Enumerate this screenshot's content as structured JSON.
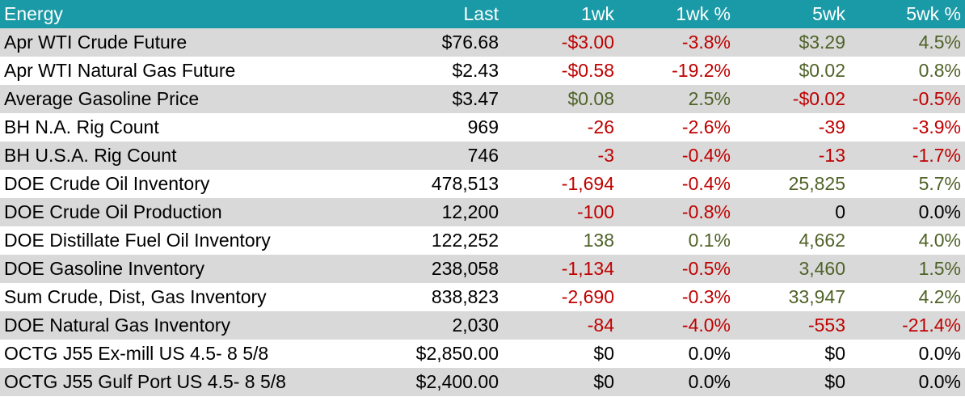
{
  "header": {
    "name": "Energy",
    "last": "Last",
    "wk1": "1wk",
    "wk1_pct": "1wk %",
    "wk5": "5wk",
    "wk5_pct": "5wk %"
  },
  "colors": {
    "header_bg": "#1a9aa6",
    "negative": "#c00000",
    "positive": "#4f6228",
    "stripe": "#d9d9d9"
  },
  "rows": [
    {
      "name": "Apr WTI Crude Future",
      "last": "$76.68",
      "wk1": "-$3.00",
      "wk1_pct": "-3.8%",
      "wk5": "$3.29",
      "wk5_pct": "4.5%"
    },
    {
      "name": "Apr WTI Natural Gas Future",
      "last": "$2.43",
      "wk1": "-$0.58",
      "wk1_pct": "-19.2%",
      "wk5": "$0.02",
      "wk5_pct": "0.8%"
    },
    {
      "name": "Average Gasoline Price",
      "last": "$3.47",
      "wk1": "$0.08",
      "wk1_pct": "2.5%",
      "wk5": "-$0.02",
      "wk5_pct": "-0.5%"
    },
    {
      "name": "BH N.A. Rig Count",
      "last": "969",
      "wk1": "-26",
      "wk1_pct": "-2.6%",
      "wk5": "-39",
      "wk5_pct": "-3.9%"
    },
    {
      "name": "BH U.S.A. Rig Count",
      "last": "746",
      "wk1": "-3",
      "wk1_pct": "-0.4%",
      "wk5": "-13",
      "wk5_pct": "-1.7%"
    },
    {
      "name": "DOE Crude Oil Inventory",
      "last": "478,513",
      "wk1": "-1,694",
      "wk1_pct": "-0.4%",
      "wk5": "25,825",
      "wk5_pct": "5.7%"
    },
    {
      "name": "DOE Crude Oil Production",
      "last": "12,200",
      "wk1": "-100",
      "wk1_pct": "-0.8%",
      "wk5": "0",
      "wk5_pct": "0.0%"
    },
    {
      "name": "DOE Distillate Fuel Oil Inventory",
      "last": "122,252",
      "wk1": "138",
      "wk1_pct": "0.1%",
      "wk5": "4,662",
      "wk5_pct": "4.0%"
    },
    {
      "name": "DOE Gasoline Inventory",
      "last": "238,058",
      "wk1": "-1,134",
      "wk1_pct": "-0.5%",
      "wk5": "3,460",
      "wk5_pct": "1.5%"
    },
    {
      "name": "Sum Crude, Dist, Gas Inventory",
      "last": "838,823",
      "wk1": "-2,690",
      "wk1_pct": "-0.3%",
      "wk5": "33,947",
      "wk5_pct": "4.2%"
    },
    {
      "name": "DOE Natural Gas Inventory",
      "last": "2,030",
      "wk1": "-84",
      "wk1_pct": "-4.0%",
      "wk5": "-553",
      "wk5_pct": "-21.4%"
    },
    {
      "name": "OCTG J55 Ex-mill US 4.5- 8 5/8",
      "last": "$2,850.00",
      "wk1": "$0",
      "wk1_pct": "0.0%",
      "wk5": "$0",
      "wk5_pct": "0.0%"
    },
    {
      "name": "OCTG J55 Gulf Port US 4.5- 8 5/8",
      "last": "$2,400.00",
      "wk1": "$0",
      "wk1_pct": "0.0%",
      "wk5": "$0",
      "wk5_pct": "0.0%"
    }
  ]
}
